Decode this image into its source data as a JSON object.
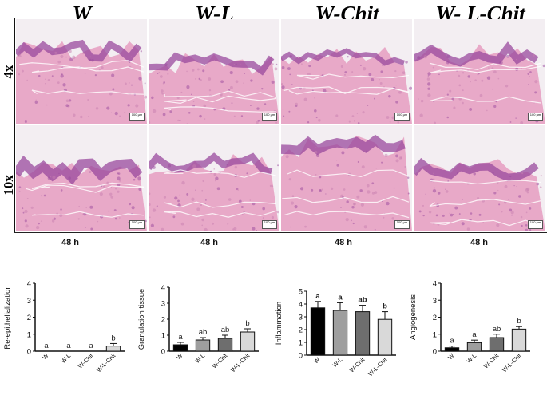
{
  "figure": {
    "columns": [
      "W",
      "W-L",
      "W-Chit",
      "W- L-Chit"
    ],
    "rows": [
      "4x",
      "10x"
    ],
    "time_labels": [
      "48 h",
      "48 h",
      "48 h",
      "48 h"
    ],
    "scale_label": "100 µm",
    "colors": {
      "tissue_pink": "#e8a9c8",
      "tissue_purple": "#9a4a9e",
      "background": "#f3eef2"
    }
  },
  "chart_data": [
    {
      "type": "bar",
      "ylabel": "Re-epithelialization",
      "categories": [
        "W",
        "W-L",
        "W-Chit",
        "W-L-Chit"
      ],
      "values": [
        0,
        0,
        0,
        0.3
      ],
      "errors": [
        0,
        0,
        0,
        0.15
      ],
      "letters": [
        "a",
        "a",
        "a",
        "b"
      ],
      "ylim": [
        0,
        4
      ],
      "yticks": [
        "0",
        "1",
        "2",
        "3",
        "4"
      ],
      "bar_colors": [
        "#ffffff",
        "#ffffff",
        "#ffffff",
        "#d9d9d9"
      ]
    },
    {
      "type": "bar",
      "ylabel": "Granulation tissue",
      "categories": [
        "W",
        "W-L",
        "W-Chit",
        "W-L-Chit"
      ],
      "values": [
        0.4,
        0.7,
        0.8,
        1.2
      ],
      "errors": [
        0.15,
        0.15,
        0.2,
        0.2
      ],
      "letters": [
        "a",
        "ab",
        "ab",
        "b"
      ],
      "ylim": [
        0,
        4
      ],
      "yticks": [
        "0",
        "1",
        "2",
        "3",
        "4"
      ],
      "bar_colors": [
        "#000000",
        "#9e9e9e",
        "#6e6e6e",
        "#d9d9d9"
      ]
    },
    {
      "type": "bar",
      "ylabel": "Inflammation",
      "categories": [
        "W",
        "W-L",
        "W-Chit",
        "W-L-Chit"
      ],
      "values": [
        3.7,
        3.5,
        3.4,
        2.8
      ],
      "errors": [
        0.5,
        0.6,
        0.5,
        0.6
      ],
      "letters": [
        "a",
        "a",
        "ab",
        "b"
      ],
      "ylim": [
        0,
        5
      ],
      "yticks": [
        "0",
        "1",
        "2",
        "3",
        "4",
        "5"
      ],
      "bar_colors": [
        "#000000",
        "#9e9e9e",
        "#6e6e6e",
        "#d9d9d9"
      ]
    },
    {
      "type": "bar",
      "ylabel": "Angiogenesis",
      "categories": [
        "W",
        "W-L",
        "W-Chit",
        "W-L-Chit"
      ],
      "values": [
        0.2,
        0.5,
        0.8,
        1.3
      ],
      "errors": [
        0.1,
        0.15,
        0.2,
        0.15
      ],
      "letters": [
        "a",
        "a",
        "ab",
        "b"
      ],
      "ylim": [
        0,
        4
      ],
      "yticks": [
        "0",
        "1",
        "2",
        "3",
        "4"
      ],
      "bar_colors": [
        "#000000",
        "#9e9e9e",
        "#6e6e6e",
        "#d9d9d9"
      ]
    }
  ]
}
